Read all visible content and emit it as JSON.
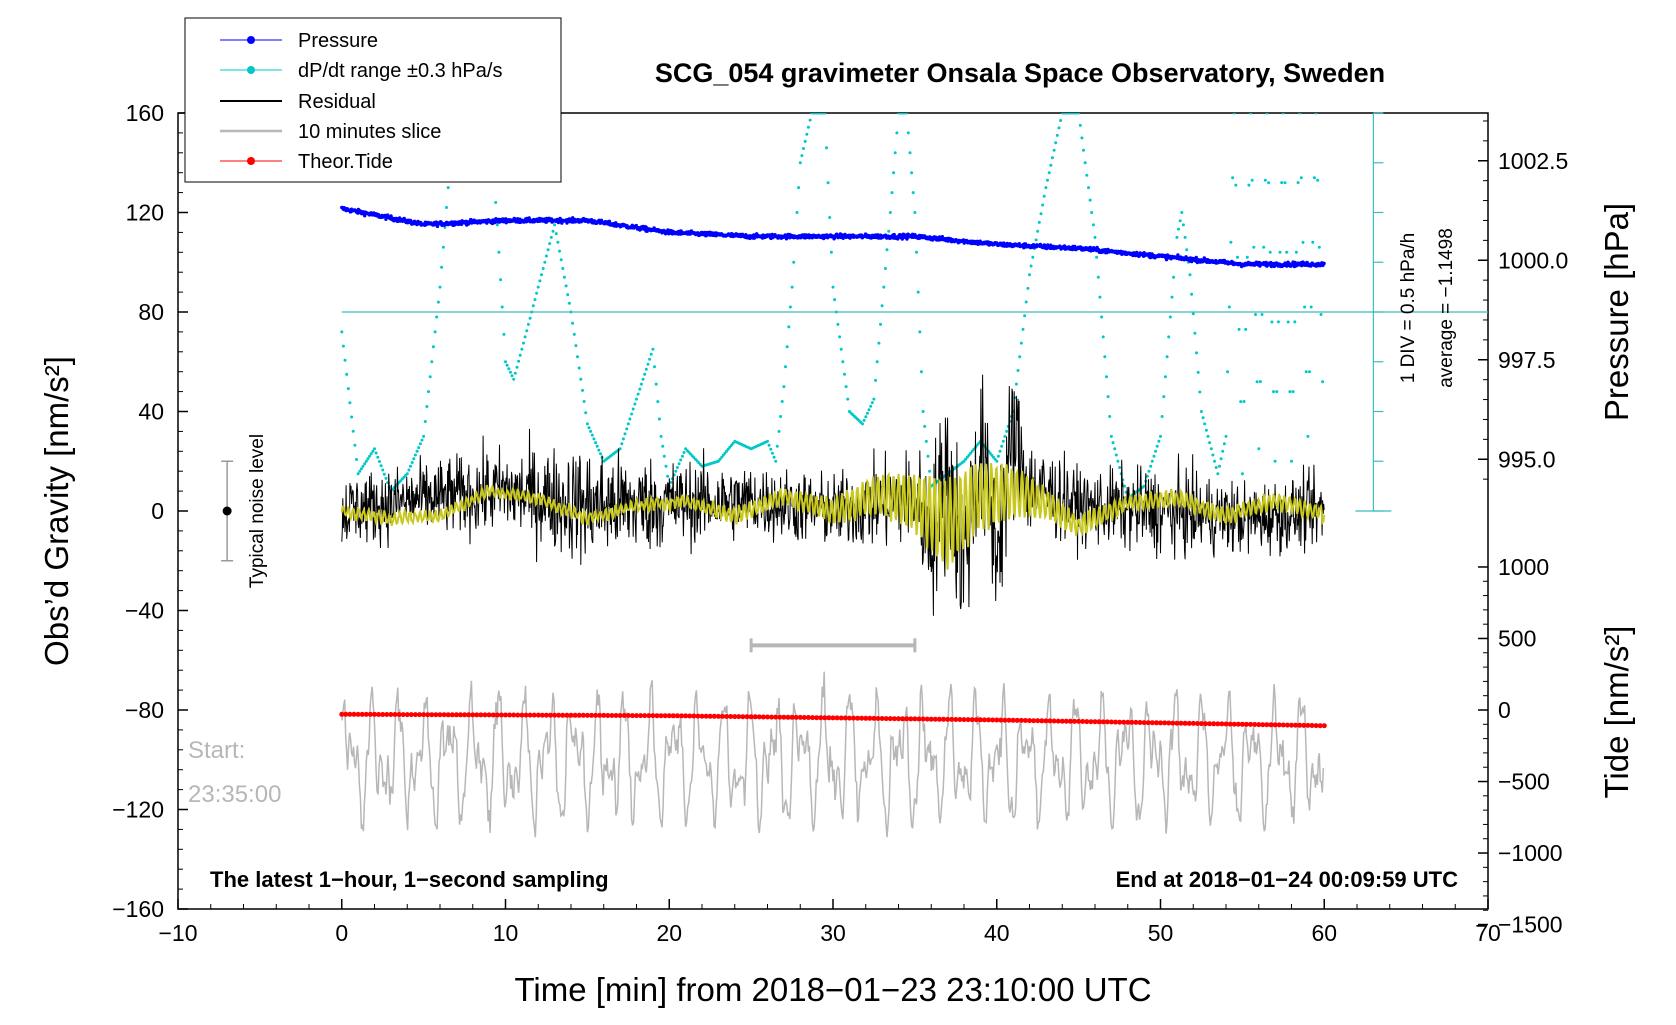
{
  "chart_data": {
    "type": "line",
    "title": "SCG_054 gravimeter Onsala Space Observatory, Sweden",
    "xlabel": "Time [min] from 2018−01−23 23:10:00 UTC",
    "ylabel_left": "Obs’d Gravity [nm/s²]",
    "ylabel_right_pressure": "Pressure [hPa]",
    "ylabel_right_tide": "Tide [nm/s²]",
    "xlim": [
      -10,
      70
    ],
    "ylim": [
      -160,
      160
    ],
    "x_ticks": [
      "−10",
      "0",
      "10",
      "20",
      "30",
      "40",
      "50",
      "60",
      "70"
    ],
    "x_tick_values": [
      -10,
      0,
      10,
      20,
      30,
      40,
      50,
      60,
      70
    ],
    "y_ticks": [
      "160",
      "120",
      "80",
      "40",
      "0",
      "−40",
      "−80",
      "−120",
      "−160"
    ],
    "y_tick_values": [
      160,
      120,
      80,
      40,
      0,
      -40,
      -80,
      -120,
      -160
    ],
    "pressure_ticks": [
      "1002.5",
      "1000.0",
      "997.5",
      "995.0"
    ],
    "pressure_tick_values": [
      1002.5,
      1000.0,
      997.5,
      995.0
    ],
    "pressure_axis_map": {
      "hpa_at_120": 1001.2,
      "hpa_per_grav_unit": 0.0625
    },
    "tide_ticks": [
      "1000",
      "500",
      "0",
      "−500",
      "−1000",
      "−1500"
    ],
    "tide_tick_values": [
      1000,
      500,
      0,
      -500,
      -1000,
      -1500
    ],
    "tide_axis_map": {
      "grav_at_0": -80,
      "grav_per_tide_unit": 0.0575
    },
    "legend": [
      {
        "label": "Pressure",
        "color": "#0000ff",
        "marker": "dot"
      },
      {
        "label": "dP/dt range ±0.3 hPa/s",
        "color": "#00c8c8",
        "marker": "dot"
      },
      {
        "label": "Residual",
        "color": "#000000",
        "marker": "line"
      },
      {
        "label": "10 minutes slice",
        "color": "#b7b7b7",
        "marker": "line"
      },
      {
        "label": "Theor.Tide",
        "color": "#ff0000",
        "marker": "dot"
      }
    ],
    "annotations": {
      "bottom_left": "The latest 1−hour, 1−second sampling",
      "bottom_right": "End at 2018−01−24 00:09:59 UTC",
      "start_label": "Start:",
      "start_time": "23:35:00",
      "noise_label": "Typical noise level",
      "noise_bar": {
        "x": -7,
        "center": 0,
        "half_range": 20
      },
      "div_label": "1 DIV = 0.5 hPa/h",
      "average_label": "average = −1.1498",
      "dpdt_reference_level": 80,
      "dpdt_scale_x": 63,
      "dpdt_scale_range": [
        0,
        160
      ],
      "slice_marker": {
        "x_start": 25,
        "x_end": 35,
        "y": -54
      }
    },
    "series": [
      {
        "name": "Pressure",
        "color": "#0000ff",
        "unit": "hPa",
        "x": [
          0,
          5,
          10,
          15,
          20,
          25,
          30,
          35,
          40,
          45,
          50,
          55,
          60
        ],
        "values": [
          1001.3,
          1000.9,
          1001.0,
          1001.0,
          1000.7,
          1000.6,
          1000.6,
          1000.6,
          1000.4,
          1000.3,
          1000.1,
          999.9,
          999.9
        ]
      },
      {
        "name": "dP/dt range ±0.3 hPa/s",
        "color": "#00c8c8",
        "unit": "nm/s² (plot units)",
        "x": [
          0,
          1,
          2,
          3,
          4,
          5,
          6,
          6.5,
          7,
          8,
          9,
          9.5,
          10,
          10.5,
          11,
          12,
          13,
          14,
          15,
          16,
          17,
          18,
          19,
          19.5,
          20,
          21,
          22,
          23,
          24,
          25,
          26,
          26.5,
          27,
          27.5,
          28,
          28.7,
          29.5,
          30,
          31,
          31.8,
          32.5,
          33.5,
          34,
          34.5,
          35,
          35.5,
          36,
          37,
          38,
          39,
          40,
          41,
          42,
          43,
          44,
          45,
          46,
          47,
          48,
          49,
          50,
          51,
          51.3,
          51.8,
          52.5,
          53.5,
          54,
          54.5,
          55,
          55.5,
          56,
          56.5,
          57,
          57.5,
          58,
          58.5,
          59,
          59.5,
          60
        ],
        "values": [
          72,
          15,
          25,
          8,
          15,
          30,
          90,
          130,
          160,
          160,
          160,
          115,
          60,
          53,
          65,
          90,
          115,
          80,
          35,
          20,
          25,
          45,
          65,
          30,
          10,
          25,
          18,
          20,
          28,
          25,
          28,
          20,
          50,
          90,
          140,
          160,
          160,
          90,
          40,
          35,
          45,
          120,
          160,
          160,
          120,
          40,
          10,
          15,
          20,
          28,
          20,
          40,
          95,
          130,
          160,
          160,
          110,
          30,
          5,
          10,
          30,
          110,
          120,
          95,
          40,
          15,
          30,
          160,
          15,
          160,
          25,
          160,
          20,
          160,
          20,
          160,
          30,
          160,
          25
        ]
      },
      {
        "name": "Residual",
        "color": "#000000",
        "unit": "nm/s²",
        "x": [
          0,
          5,
          10,
          15,
          20,
          25,
          30,
          35,
          36,
          37,
          38,
          39,
          40,
          41,
          42,
          45,
          50,
          55,
          60
        ],
        "values": [
          0,
          5,
          8,
          2,
          3,
          4,
          0,
          5,
          -10,
          15,
          -20,
          25,
          -15,
          30,
          10,
          2,
          0,
          -3,
          0
        ],
        "envelope": [
          25,
          25,
          30,
          40,
          30,
          25,
          25,
          35,
          55,
          65,
          60,
          55,
          55,
          55,
          35,
          25,
          30,
          25,
          25
        ]
      },
      {
        "name": "Residual (smoothed)",
        "color": "#c8c81e",
        "unit": "nm/s²",
        "x": [
          0,
          3,
          6,
          9,
          12,
          15,
          18,
          21,
          24,
          27,
          30,
          33,
          35,
          37,
          39,
          41,
          43,
          45,
          48,
          51,
          54,
          57,
          60
        ],
        "values": [
          0,
          -3,
          -2,
          8,
          5,
          -3,
          2,
          4,
          -2,
          6,
          0,
          7,
          3,
          -5,
          6,
          8,
          3,
          -6,
          3,
          5,
          -2,
          4,
          -1
        ],
        "oscillation": [
          2,
          2,
          2,
          2,
          2,
          2,
          2,
          2,
          3,
          3,
          5,
          8,
          12,
          18,
          14,
          10,
          6,
          4,
          3,
          3,
          3,
          3,
          3
        ]
      },
      {
        "name": "10 minutes slice",
        "color": "#b7b7b7",
        "unit": "nm/s² (plot units)",
        "x_range": [
          0,
          60
        ],
        "center": -100,
        "amplitude": 22,
        "extremes": [
          -145,
          -60
        ]
      },
      {
        "name": "Theor.Tide",
        "color": "#ff0000",
        "unit": "nm/s²",
        "x": [
          0,
          10,
          20,
          30,
          40,
          50,
          60
        ],
        "values": [
          -30,
          -35,
          -40,
          -55,
          -70,
          -90,
          -110
        ]
      }
    ]
  }
}
